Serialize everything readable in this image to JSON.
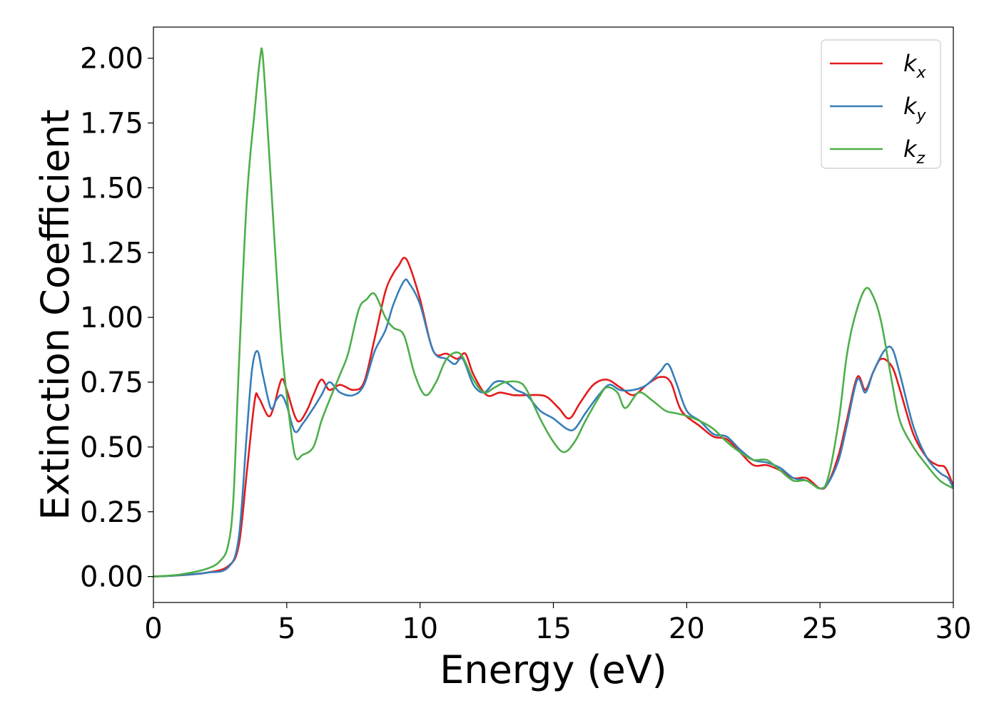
{
  "chart_data": {
    "type": "line",
    "title": "",
    "xlabel": "Energy (eV)",
    "ylabel": "Extinction Coefficient",
    "xlim": [
      0,
      30
    ],
    "ylim": [
      -0.1,
      2.12
    ],
    "xticks": [
      0,
      5,
      10,
      15,
      20,
      25,
      30
    ],
    "xtick_labels": [
      "0",
      "5",
      "10",
      "15",
      "20",
      "25",
      "30"
    ],
    "yticks": [
      0,
      0.25,
      0.5,
      0.75,
      1.0,
      1.25,
      1.5,
      1.75,
      2.0
    ],
    "ytick_labels": [
      "0.00",
      "0.25",
      "0.50",
      "0.75",
      "1.00",
      "1.25",
      "1.50",
      "1.75",
      "2.00"
    ],
    "grid": false,
    "legend": "top-right",
    "series": [
      {
        "name": "k",
        "sub": "x",
        "color": "#e41a1c",
        "points": [
          [
            0,
            0
          ],
          [
            1,
            0.005
          ],
          [
            2,
            0.015
          ],
          [
            2.8,
            0.04
          ],
          [
            3.2,
            0.12
          ],
          [
            3.5,
            0.4
          ],
          [
            3.8,
            0.68
          ],
          [
            3.95,
            0.69
          ],
          [
            4.3,
            0.62
          ],
          [
            4.5,
            0.65
          ],
          [
            4.8,
            0.76
          ],
          [
            5.0,
            0.72
          ],
          [
            5.3,
            0.62
          ],
          [
            5.5,
            0.6
          ],
          [
            5.8,
            0.65
          ],
          [
            6.0,
            0.7
          ],
          [
            6.3,
            0.76
          ],
          [
            6.6,
            0.72
          ],
          [
            7.0,
            0.74
          ],
          [
            7.5,
            0.72
          ],
          [
            7.9,
            0.75
          ],
          [
            8.3,
            0.92
          ],
          [
            8.7,
            1.1
          ],
          [
            9.0,
            1.17
          ],
          [
            9.2,
            1.2
          ],
          [
            9.4,
            1.23
          ],
          [
            9.6,
            1.2
          ],
          [
            10.0,
            1.07
          ],
          [
            10.5,
            0.87
          ],
          [
            11.0,
            0.86
          ],
          [
            11.4,
            0.84
          ],
          [
            11.7,
            0.86
          ],
          [
            12.0,
            0.78
          ],
          [
            12.5,
            0.7
          ],
          [
            13.0,
            0.71
          ],
          [
            13.5,
            0.7
          ],
          [
            14.0,
            0.7
          ],
          [
            14.5,
            0.7
          ],
          [
            14.8,
            0.69
          ],
          [
            15.2,
            0.65
          ],
          [
            15.6,
            0.61
          ],
          [
            16.0,
            0.67
          ],
          [
            16.5,
            0.74
          ],
          [
            17.0,
            0.76
          ],
          [
            17.5,
            0.73
          ],
          [
            18.0,
            0.7
          ],
          [
            18.5,
            0.74
          ],
          [
            19.0,
            0.77
          ],
          [
            19.4,
            0.75
          ],
          [
            19.8,
            0.64
          ],
          [
            20.5,
            0.58
          ],
          [
            21.0,
            0.54
          ],
          [
            21.5,
            0.53
          ],
          [
            22.0,
            0.48
          ],
          [
            22.5,
            0.43
          ],
          [
            23.0,
            0.43
          ],
          [
            23.5,
            0.41
          ],
          [
            24.0,
            0.38
          ],
          [
            24.5,
            0.38
          ],
          [
            25.0,
            0.34
          ],
          [
            25.3,
            0.36
          ],
          [
            25.7,
            0.47
          ],
          [
            26.0,
            0.6
          ],
          [
            26.4,
            0.77
          ],
          [
            26.7,
            0.72
          ],
          [
            27.0,
            0.79
          ],
          [
            27.3,
            0.84
          ],
          [
            27.7,
            0.81
          ],
          [
            28.0,
            0.72
          ],
          [
            28.5,
            0.55
          ],
          [
            29.0,
            0.46
          ],
          [
            29.4,
            0.43
          ],
          [
            29.7,
            0.42
          ],
          [
            30.0,
            0.35
          ]
        ]
      },
      {
        "name": "k",
        "sub": "y",
        "color": "#377eb8",
        "points": [
          [
            0,
            0
          ],
          [
            1,
            0.005
          ],
          [
            2,
            0.015
          ],
          [
            2.8,
            0.035
          ],
          [
            3.2,
            0.15
          ],
          [
            3.5,
            0.55
          ],
          [
            3.7,
            0.8
          ],
          [
            3.9,
            0.87
          ],
          [
            4.1,
            0.78
          ],
          [
            4.4,
            0.65
          ],
          [
            4.6,
            0.68
          ],
          [
            4.8,
            0.7
          ],
          [
            5.0,
            0.66
          ],
          [
            5.3,
            0.56
          ],
          [
            5.6,
            0.59
          ],
          [
            6.0,
            0.65
          ],
          [
            6.3,
            0.7
          ],
          [
            6.6,
            0.75
          ],
          [
            7.0,
            0.71
          ],
          [
            7.5,
            0.7
          ],
          [
            7.9,
            0.74
          ],
          [
            8.3,
            0.87
          ],
          [
            8.7,
            0.95
          ],
          [
            9.0,
            1.05
          ],
          [
            9.4,
            1.14
          ],
          [
            9.6,
            1.13
          ],
          [
            10.0,
            1.05
          ],
          [
            10.5,
            0.87
          ],
          [
            11.0,
            0.84
          ],
          [
            11.3,
            0.82
          ],
          [
            11.6,
            0.84
          ],
          [
            12.0,
            0.74
          ],
          [
            12.4,
            0.71
          ],
          [
            12.8,
            0.75
          ],
          [
            13.2,
            0.75
          ],
          [
            13.6,
            0.72
          ],
          [
            14.0,
            0.7
          ],
          [
            14.5,
            0.64
          ],
          [
            15.0,
            0.61
          ],
          [
            15.5,
            0.57
          ],
          [
            15.8,
            0.57
          ],
          [
            16.2,
            0.63
          ],
          [
            16.7,
            0.7
          ],
          [
            17.1,
            0.74
          ],
          [
            17.5,
            0.72
          ],
          [
            18.0,
            0.72
          ],
          [
            18.5,
            0.74
          ],
          [
            19.0,
            0.79
          ],
          [
            19.3,
            0.82
          ],
          [
            19.6,
            0.75
          ],
          [
            20.0,
            0.64
          ],
          [
            20.5,
            0.6
          ],
          [
            21.0,
            0.55
          ],
          [
            21.5,
            0.54
          ],
          [
            22.0,
            0.49
          ],
          [
            22.5,
            0.45
          ],
          [
            23.0,
            0.44
          ],
          [
            23.5,
            0.42
          ],
          [
            24.0,
            0.38
          ],
          [
            24.5,
            0.37
          ],
          [
            25.0,
            0.34
          ],
          [
            25.3,
            0.36
          ],
          [
            25.7,
            0.45
          ],
          [
            26.0,
            0.58
          ],
          [
            26.4,
            0.76
          ],
          [
            26.7,
            0.71
          ],
          [
            27.0,
            0.79
          ],
          [
            27.4,
            0.87
          ],
          [
            27.7,
            0.88
          ],
          [
            28.0,
            0.78
          ],
          [
            28.5,
            0.58
          ],
          [
            29.0,
            0.46
          ],
          [
            29.5,
            0.4
          ],
          [
            29.8,
            0.38
          ],
          [
            30.0,
            0.34
          ]
        ]
      },
      {
        "name": "k",
        "sub": "z",
        "color": "#4daf4a",
        "points": [
          [
            0,
            0
          ],
          [
            1,
            0.008
          ],
          [
            2,
            0.03
          ],
          [
            2.5,
            0.06
          ],
          [
            2.8,
            0.12
          ],
          [
            3.0,
            0.3
          ],
          [
            3.2,
            0.8
          ],
          [
            3.5,
            1.45
          ],
          [
            3.8,
            1.8
          ],
          [
            4.0,
            2.0
          ],
          [
            4.1,
            2.01
          ],
          [
            4.3,
            1.7
          ],
          [
            4.6,
            1.2
          ],
          [
            4.8,
            0.9
          ],
          [
            5.0,
            0.7
          ],
          [
            5.3,
            0.47
          ],
          [
            5.6,
            0.47
          ],
          [
            6.0,
            0.5
          ],
          [
            6.3,
            0.6
          ],
          [
            6.6,
            0.68
          ],
          [
            7.0,
            0.78
          ],
          [
            7.3,
            0.86
          ],
          [
            7.7,
            1.03
          ],
          [
            8.0,
            1.07
          ],
          [
            8.3,
            1.09
          ],
          [
            8.7,
            1.0
          ],
          [
            9.0,
            0.96
          ],
          [
            9.4,
            0.93
          ],
          [
            9.8,
            0.78
          ],
          [
            10.2,
            0.7
          ],
          [
            10.6,
            0.75
          ],
          [
            11.0,
            0.84
          ],
          [
            11.5,
            0.86
          ],
          [
            12.0,
            0.76
          ],
          [
            12.4,
            0.71
          ],
          [
            12.8,
            0.73
          ],
          [
            13.2,
            0.75
          ],
          [
            13.7,
            0.75
          ],
          [
            14.0,
            0.72
          ],
          [
            14.5,
            0.61
          ],
          [
            15.0,
            0.52
          ],
          [
            15.4,
            0.48
          ],
          [
            15.8,
            0.52
          ],
          [
            16.2,
            0.6
          ],
          [
            16.7,
            0.69
          ],
          [
            17.0,
            0.73
          ],
          [
            17.4,
            0.71
          ],
          [
            17.7,
            0.65
          ],
          [
            18.2,
            0.71
          ],
          [
            18.7,
            0.68
          ],
          [
            19.2,
            0.64
          ],
          [
            19.6,
            0.63
          ],
          [
            20.0,
            0.62
          ],
          [
            20.5,
            0.6
          ],
          [
            21.0,
            0.57
          ],
          [
            21.5,
            0.52
          ],
          [
            22.0,
            0.48
          ],
          [
            22.5,
            0.45
          ],
          [
            23.0,
            0.45
          ],
          [
            23.5,
            0.41
          ],
          [
            24.0,
            0.37
          ],
          [
            24.5,
            0.37
          ],
          [
            25.0,
            0.34
          ],
          [
            25.3,
            0.38
          ],
          [
            25.7,
            0.6
          ],
          [
            26.0,
            0.85
          ],
          [
            26.3,
            1.0
          ],
          [
            26.7,
            1.11
          ],
          [
            27.0,
            1.08
          ],
          [
            27.3,
            0.98
          ],
          [
            27.7,
            0.75
          ],
          [
            28.0,
            0.6
          ],
          [
            28.5,
            0.5
          ],
          [
            29.0,
            0.43
          ],
          [
            29.5,
            0.37
          ],
          [
            30.0,
            0.34
          ]
        ]
      }
    ]
  }
}
